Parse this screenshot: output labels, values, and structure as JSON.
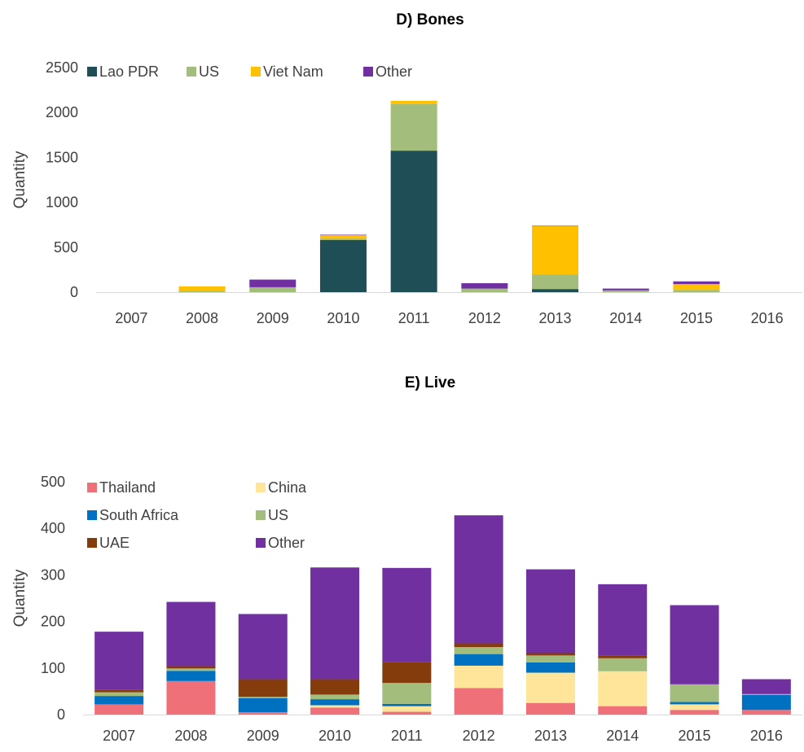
{
  "charts": [
    {
      "id": "bones",
      "type": "bar",
      "stacked": true,
      "title": "D)   Bones",
      "ylabel": "Quantity",
      "xlabel": "",
      "ylim": [
        0,
        2500
      ],
      "yticks": [
        0,
        500,
        1000,
        1500,
        2000,
        2500
      ],
      "categories": [
        "2007",
        "2008",
        "2009",
        "2010",
        "2011",
        "2012",
        "2013",
        "2014",
        "2015",
        "2016"
      ],
      "legend_position": "top",
      "series": [
        {
          "name": "Lao PDR",
          "color": "#1F4E56",
          "values": [
            0,
            0,
            0,
            580,
            1575,
            0,
            35,
            0,
            0,
            0
          ]
        },
        {
          "name": "US",
          "color": "#A2BD7C",
          "values": [
            0,
            15,
            55,
            20,
            520,
            40,
            160,
            20,
            25,
            0
          ]
        },
        {
          "name": "Viet Nam",
          "color": "#FFC000",
          "values": [
            0,
            50,
            0,
            35,
            35,
            0,
            540,
            0,
            65,
            0
          ]
        },
        {
          "name": "Other",
          "color": "#7030A0",
          "values": [
            0,
            0,
            85,
            5,
            0,
            60,
            5,
            20,
            30,
            0
          ]
        }
      ]
    },
    {
      "id": "live",
      "type": "bar",
      "stacked": true,
      "title": "E)   Live",
      "ylabel": "Quantity",
      "xlabel": "",
      "ylim": [
        0,
        500
      ],
      "yticks": [
        0,
        100,
        200,
        300,
        400,
        500
      ],
      "categories": [
        "2007",
        "2008",
        "2009",
        "2010",
        "2011",
        "2012",
        "2013",
        "2014",
        "2015",
        "2016"
      ],
      "legend_position": "top-left",
      "series": [
        {
          "name": "Thailand",
          "color": "#F0707A",
          "values": [
            22,
            72,
            5,
            15,
            6,
            57,
            25,
            18,
            10,
            10
          ]
        },
        {
          "name": "China",
          "color": "#FEE59A",
          "values": [
            0,
            0,
            0,
            5,
            12,
            48,
            65,
            75,
            12,
            0
          ]
        },
        {
          "name": "South Africa",
          "color": "#0070C0",
          "values": [
            18,
            22,
            30,
            13,
            5,
            25,
            22,
            0,
            5,
            32
          ]
        },
        {
          "name": "US",
          "color": "#A2BD7C",
          "values": [
            8,
            5,
            3,
            10,
            45,
            15,
            15,
            28,
            38,
            2
          ]
        },
        {
          "name": "UAE",
          "color": "#843C0C",
          "values": [
            5,
            5,
            38,
            33,
            45,
            8,
            5,
            6,
            0,
            0
          ]
        },
        {
          "name": "Other",
          "color": "#7030A0",
          "values": [
            125,
            138,
            140,
            240,
            202,
            275,
            180,
            153,
            170,
            32
          ]
        }
      ]
    }
  ]
}
